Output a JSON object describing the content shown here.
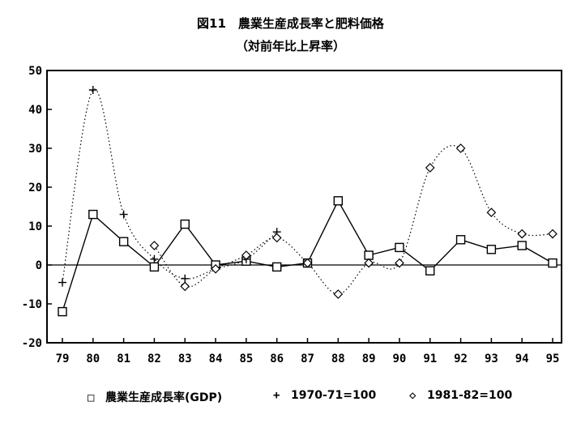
{
  "chart_data": {
    "type": "line",
    "title": "図11　農業生産成長率と肥料価格",
    "subtitle": "（対前年比上昇率）",
    "categories": [
      "79",
      "80",
      "81",
      "82",
      "83",
      "84",
      "85",
      "86",
      "87",
      "88",
      "89",
      "90",
      "91",
      "92",
      "93",
      "94",
      "95"
    ],
    "ylim": [
      -20,
      50
    ],
    "yticks": [
      "50",
      "40",
      "30",
      "20",
      "10",
      "0",
      "-10",
      "-20"
    ],
    "grid": false,
    "legend_position": "bottom",
    "series": [
      {
        "name": "農業生産成長率(GDP)",
        "marker": "square",
        "line": "solid",
        "values": [
          -12,
          13,
          6,
          -0.5,
          10.5,
          0,
          1,
          -0.5,
          0.5,
          16.5,
          2.5,
          4.5,
          -1.5,
          6.5,
          4,
          5,
          0.5
        ]
      },
      {
        "name": "1970-71=100",
        "marker": "plus",
        "line": "dotted",
        "values": [
          -4.5,
          45,
          13,
          1.5,
          -3.5,
          -1,
          1.5,
          8.5,
          null,
          null,
          null,
          null,
          null,
          null,
          null,
          null,
          null
        ]
      },
      {
        "name": "1981-82=100",
        "marker": "diamond",
        "line": "dotted",
        "values": [
          null,
          null,
          null,
          5,
          -5.5,
          -1,
          2.5,
          7,
          0.5,
          -7.5,
          0.5,
          0.5,
          25,
          30,
          13.5,
          8,
          8
        ]
      }
    ]
  }
}
